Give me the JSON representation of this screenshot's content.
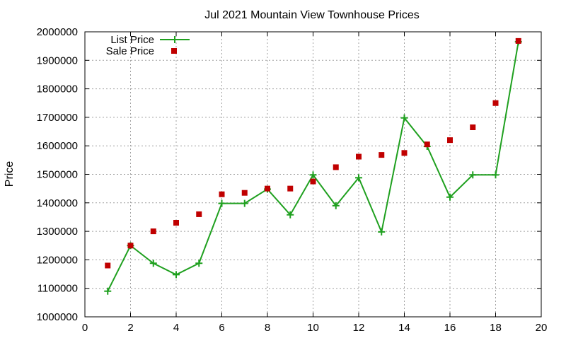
{
  "chart_data": {
    "type": "line",
    "title": "Jul 2021 Mountain View Townhouse Prices",
    "xlabel": "",
    "ylabel": "Price",
    "xlim": [
      0,
      20
    ],
    "ylim": [
      1000000,
      2000000
    ],
    "x_ticks": [
      0,
      2,
      4,
      6,
      8,
      10,
      12,
      14,
      16,
      18,
      20
    ],
    "y_ticks": [
      1000000,
      1100000,
      1200000,
      1300000,
      1400000,
      1500000,
      1600000,
      1700000,
      1800000,
      1900000,
      2000000
    ],
    "grid": true,
    "legend_position": "top-left",
    "series": [
      {
        "name": "List Price",
        "style": "linespoints",
        "marker": "plus",
        "color": "#1fa01f",
        "x": [
          1,
          2,
          3,
          4,
          5,
          6,
          7,
          8,
          9,
          10,
          11,
          12,
          13,
          14,
          15,
          16,
          17,
          18,
          19
        ],
        "y": [
          1090000,
          1250000,
          1188000,
          1148000,
          1188000,
          1398000,
          1398000,
          1448000,
          1358000,
          1498000,
          1390000,
          1488000,
          1298000,
          1698000,
          1598000,
          1420000,
          1498000,
          1498000,
          1965000
        ]
      },
      {
        "name": "Sale Price",
        "style": "points",
        "marker": "square",
        "color": "#c00000",
        "x": [
          1,
          2,
          3,
          4,
          5,
          6,
          7,
          8,
          9,
          10,
          11,
          12,
          13,
          14,
          15,
          16,
          17,
          18,
          19
        ],
        "y": [
          1180000,
          1250000,
          1300000,
          1330000,
          1360000,
          1430000,
          1435000,
          1450000,
          1450000,
          1475000,
          1525000,
          1562000,
          1568000,
          1575000,
          1605000,
          1620000,
          1665000,
          1750000,
          1968000
        ]
      }
    ]
  }
}
